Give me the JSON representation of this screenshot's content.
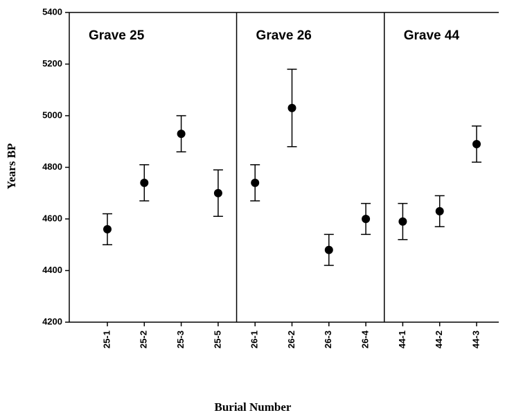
{
  "chart_data": {
    "type": "errorbar",
    "x_label": "Burial Number",
    "y_label": "Years BP",
    "groups": [
      "Grave 25",
      "Grave 26",
      "Grave 44"
    ],
    "categories": [
      "25-1",
      "25-2",
      "25-3",
      "25-5",
      "26-1",
      "26-2",
      "26-3",
      "26-4",
      "44-1",
      "44-2",
      "44-3"
    ],
    "values": [
      4560,
      4740,
      4930,
      4700,
      4740,
      5030,
      4480,
      4600,
      4590,
      4630,
      4890
    ],
    "errors": [
      60,
      70,
      70,
      90,
      70,
      150,
      60,
      60,
      70,
      60,
      70
    ],
    "color": "#000000",
    "ylim": [
      4200,
      5400
    ],
    "yticks": [
      4200,
      4400,
      4600,
      4800,
      5000,
      5200,
      5400
    ]
  }
}
